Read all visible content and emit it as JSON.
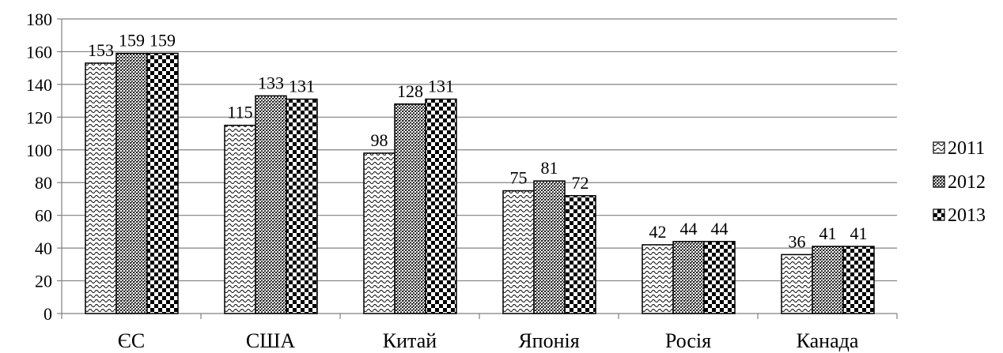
{
  "chart_data": {
    "type": "bar",
    "categories": [
      "ЄС",
      "США",
      "Китай",
      "Японія",
      "Росія",
      "Канада"
    ],
    "series": [
      {
        "name": "2011",
        "values": [
          153,
          115,
          98,
          75,
          42,
          36
        ],
        "pattern": "wave"
      },
      {
        "name": "2012",
        "values": [
          159,
          133,
          128,
          81,
          44,
          41
        ],
        "pattern": "dots"
      },
      {
        "name": "2013",
        "values": [
          159,
          131,
          131,
          72,
          44,
          41
        ],
        "pattern": "checker"
      }
    ],
    "ylim": [
      0,
      180
    ],
    "yticks": [
      0,
      20,
      40,
      60,
      80,
      100,
      120,
      140,
      160,
      180
    ],
    "grid": true,
    "legend_position": "right",
    "title": "",
    "xlabel": "",
    "ylabel": ""
  }
}
